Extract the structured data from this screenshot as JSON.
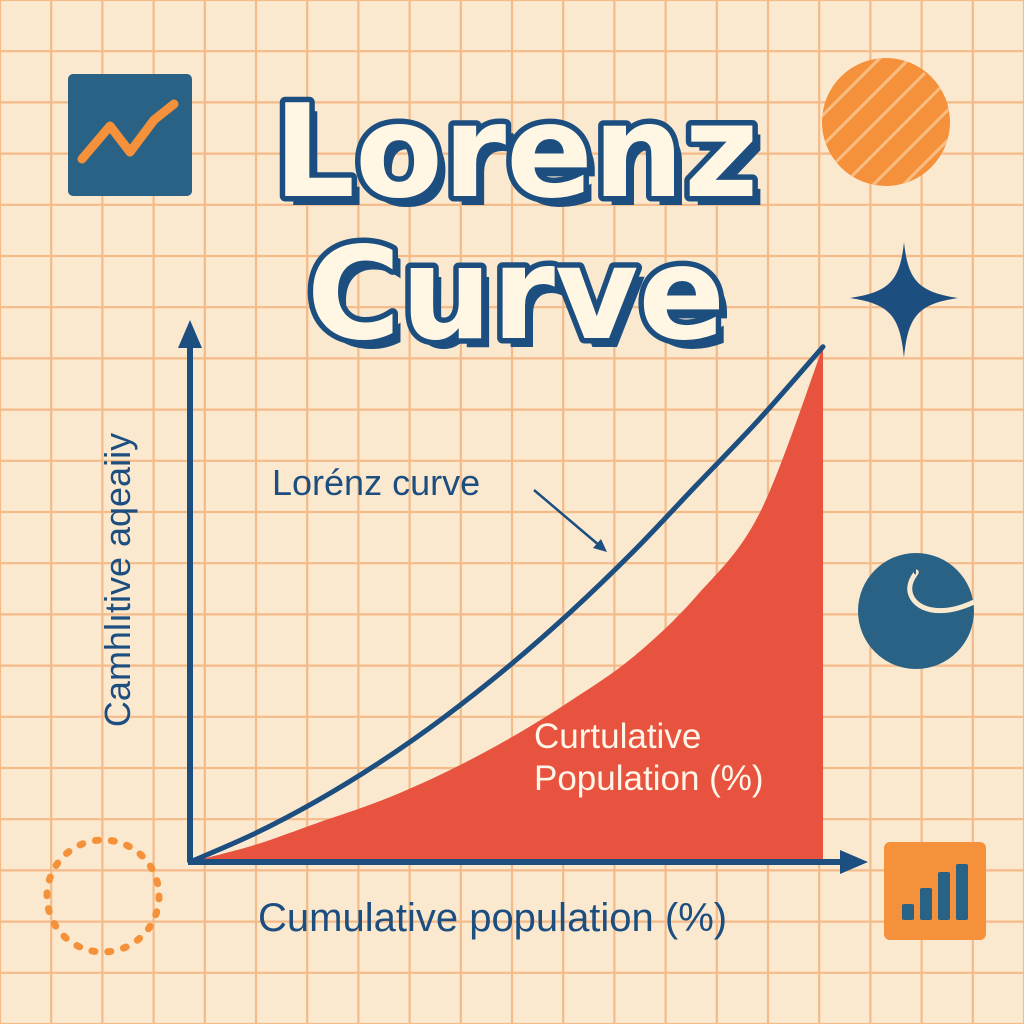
{
  "title": {
    "line1": "Lorenz",
    "line2": "Curve"
  },
  "colors": {
    "background": "#fbe9cf",
    "grid": "#f3b27c",
    "navy": "#1c4e80",
    "area_fill": "#e8533f",
    "orange": "#f4913a",
    "title_fill": "#fff6e3"
  },
  "icons": [
    "line-chart-icon",
    "striped-circle-icon",
    "sparkle-icon",
    "pie-chart-icon",
    "dotted-circle-icon",
    "bar-chart-icon"
  ],
  "chart_data": {
    "type": "area",
    "title": "Lorenz Curve",
    "xlabel": "Cumulative population (%)",
    "ylabel": "Camhlıtive aqeaiiy",
    "grid": true,
    "annotations": {
      "line_label": "Lorénz curve",
      "area_label_line1": "Curtulative",
      "area_label_line2": "Population (%)"
    },
    "xlim": [
      0,
      100
    ],
    "ylim": [
      0,
      100
    ],
    "series": [
      {
        "kind": "line",
        "x": [
          0,
          10,
          20,
          30,
          40,
          50,
          60,
          70,
          80,
          90,
          100
        ],
        "y": [
          0,
          5,
          11,
          18,
          26,
          35,
          45,
          56,
          68,
          80,
          93
        ]
      },
      {
        "kind": "filled-area",
        "x": [
          0,
          10,
          20,
          30,
          40,
          50,
          60,
          70,
          80,
          90,
          100
        ],
        "y": [
          0,
          3,
          7,
          11,
          16,
          22,
          29,
          37,
          48,
          63,
          93
        ]
      }
    ]
  }
}
